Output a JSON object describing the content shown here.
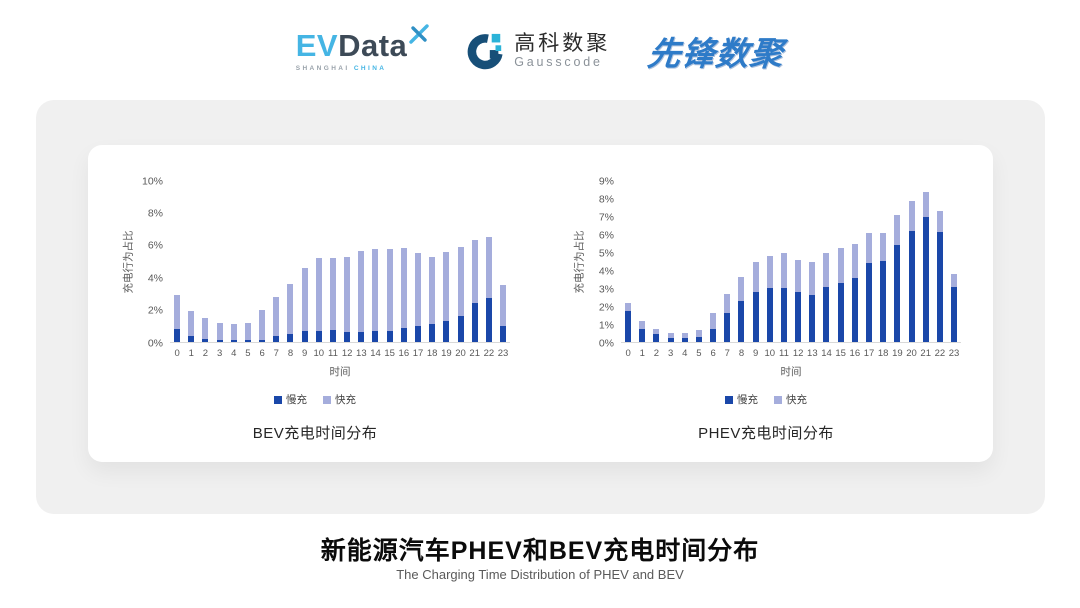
{
  "page": {
    "background": "#ffffff",
    "panel_background": "#f0f0f0",
    "card_background": "#ffffff"
  },
  "header": {
    "evdata": {
      "part1": "EV",
      "part2": "Data",
      "tagline_left": "SHANGHAI",
      "tagline_right": "CHINA"
    },
    "gausscode": {
      "name_cn": "高科数聚",
      "name_en": "Gausscode"
    },
    "pioneer": {
      "name": "先锋数聚"
    }
  },
  "footer": {
    "title": "新能源汽车PHEV和BEV充电时间分布",
    "subtitle": "The Charging Time Distribution of PHEV and BEV"
  },
  "colors": {
    "slow_charge": "#1a47a9",
    "fast_charge": "#a5addc",
    "axis_text": "#595959",
    "baseline": "#d9d9d9"
  },
  "chart_data": [
    {
      "type": "bar",
      "stacked": true,
      "title": "BEV充电时间分布",
      "xlabel": "时间",
      "ylabel": "充电行为占比",
      "ylim": [
        0,
        10
      ],
      "ytick_step": 2,
      "ytick_suffix": "%",
      "grid": false,
      "legend_position": "bottom",
      "categories": [
        "0",
        "1",
        "2",
        "3",
        "4",
        "5",
        "6",
        "7",
        "8",
        "9",
        "10",
        "11",
        "12",
        "13",
        "14",
        "15",
        "16",
        "17",
        "18",
        "19",
        "20",
        "21",
        "22",
        "23"
      ],
      "series": [
        {
          "name": "慢充",
          "color": "#1a47a9",
          "values": [
            0.8,
            0.35,
            0.2,
            0.1,
            0.1,
            0.1,
            0.15,
            0.35,
            0.5,
            0.7,
            0.7,
            0.75,
            0.6,
            0.65,
            0.7,
            0.7,
            0.85,
            1.0,
            1.1,
            1.3,
            1.6,
            2.4,
            2.75,
            1.0
          ]
        },
        {
          "name": "快充",
          "color": "#a5addc",
          "values": [
            2.1,
            1.55,
            1.3,
            1.1,
            1.0,
            1.1,
            1.85,
            2.45,
            3.1,
            3.9,
            4.5,
            4.5,
            4.65,
            5.0,
            5.1,
            5.1,
            5.0,
            4.5,
            4.2,
            4.3,
            4.3,
            3.95,
            3.8,
            2.55
          ]
        }
      ]
    },
    {
      "type": "bar",
      "stacked": true,
      "title": "PHEV充电时间分布",
      "xlabel": "时间",
      "ylabel": "充电行为占比",
      "ylim": [
        0,
        9
      ],
      "ytick_step": 1,
      "ytick_suffix": "%",
      "grid": false,
      "legend_position": "bottom",
      "categories": [
        "0",
        "1",
        "2",
        "3",
        "4",
        "5",
        "6",
        "7",
        "8",
        "9",
        "10",
        "11",
        "12",
        "13",
        "14",
        "15",
        "16",
        "17",
        "18",
        "19",
        "20",
        "21",
        "22",
        "23"
      ],
      "series": [
        {
          "name": "慢充",
          "color": "#1a47a9",
          "values": [
            1.75,
            0.75,
            0.45,
            0.25,
            0.25,
            0.3,
            0.75,
            1.6,
            2.3,
            2.8,
            3.0,
            3.0,
            2.8,
            2.65,
            3.1,
            3.3,
            3.6,
            4.4,
            4.55,
            5.4,
            6.2,
            7.0,
            6.15,
            3.05
          ]
        },
        {
          "name": "快充",
          "color": "#a5addc",
          "values": [
            0.45,
            0.4,
            0.3,
            0.25,
            0.25,
            0.4,
            0.85,
            1.1,
            1.35,
            1.7,
            1.8,
            2.0,
            1.8,
            1.85,
            1.9,
            1.95,
            1.9,
            1.7,
            1.55,
            1.7,
            1.7,
            1.4,
            1.2,
            0.75
          ]
        }
      ]
    }
  ]
}
